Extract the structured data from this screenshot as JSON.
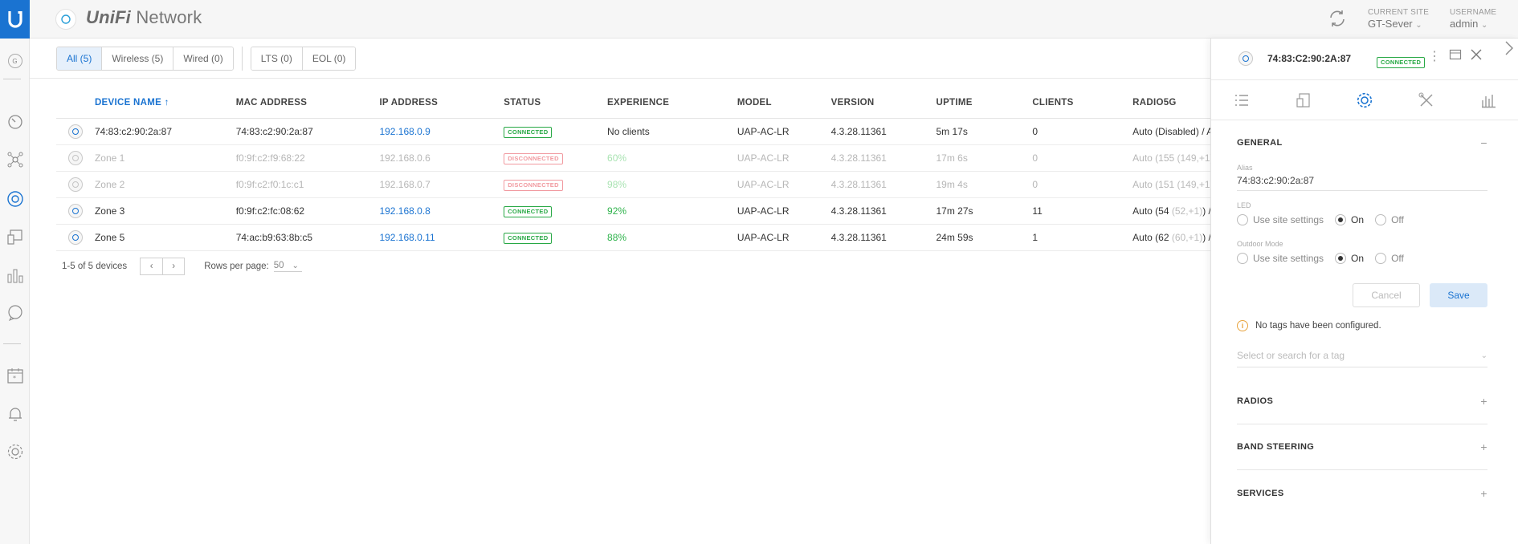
{
  "app": {
    "brand_unifi": "UniFi",
    "brand_network": "Network"
  },
  "topbar": {
    "site_label": "CURRENT SITE",
    "site_value": "GT-Sever",
    "user_label": "USERNAME",
    "user_value": "admin"
  },
  "rail": {
    "site_letter": "G"
  },
  "filters": {
    "all": "All (5)",
    "wireless": "Wireless (5)",
    "wired": "Wired (0)",
    "lts": "LTS (0)",
    "eol": "EOL (0)"
  },
  "table": {
    "headers": {
      "name": "DEVICE NAME",
      "mac": "MAC ADDRESS",
      "ip": "IP ADDRESS",
      "status": "STATUS",
      "experience": "EXPERIENCE",
      "model": "MODEL",
      "version": "VERSION",
      "uptime": "UPTIME",
      "clients": "CLIENTS",
      "radio": "RADIO5G"
    },
    "rows": [
      {
        "name": "74:83:c2:90:2a:87",
        "mac": "74:83:c2:90:2a:87",
        "ip": "192.168.0.9",
        "status": "CONNECTED",
        "experience": "No clients",
        "model": "UAP-AC-LR",
        "version": "4.3.28.11361",
        "uptime": "5m 17s",
        "clients": "0",
        "radio_main": "Auto (Disabled)",
        "radio_paren": "",
        "radio_tail": " / A"
      },
      {
        "name": "Zone 1",
        "mac": "f0:9f:c2:f9:68:22",
        "ip": "192.168.0.6",
        "status": "DISCONNECTED",
        "experience": "60%",
        "model": "UAP-AC-LR",
        "version": "4.3.28.11361",
        "uptime": "17m 6s",
        "clients": "0",
        "radio_main": "Auto (155 ",
        "radio_paren": "(149,+1)",
        "radio_tail": ")"
      },
      {
        "name": "Zone 2",
        "mac": "f0:9f:c2:f0:1c:c1",
        "ip": "192.168.0.7",
        "status": "DISCONNECTED",
        "experience": "98%",
        "model": "UAP-AC-LR",
        "version": "4.3.28.11361",
        "uptime": "19m 4s",
        "clients": "0",
        "radio_main": "Auto (151 ",
        "radio_paren": "(149,+1)",
        "radio_tail": ")"
      },
      {
        "name": "Zone 3",
        "mac": "f0:9f:c2:fc:08:62",
        "ip": "192.168.0.8",
        "status": "CONNECTED",
        "experience": "92%",
        "model": "UAP-AC-LR",
        "version": "4.3.28.11361",
        "uptime": "17m 27s",
        "clients": "11",
        "radio_main": "Auto (54 ",
        "radio_paren": "(52,+1)",
        "radio_tail": ")  /"
      },
      {
        "name": "Zone 5",
        "mac": "74:ac:b9:63:8b:c5",
        "ip": "192.168.0.11",
        "status": "CONNECTED",
        "experience": "88%",
        "model": "UAP-AC-LR",
        "version": "4.3.28.11361",
        "uptime": "24m 59s",
        "clients": "1",
        "radio_main": "Auto (62 ",
        "radio_paren": "(60,+1)",
        "radio_tail": ")  /"
      }
    ]
  },
  "pager": {
    "summary": "1-5 of 5 devices",
    "rows_label": "Rows per page:",
    "rows_value": "50"
  },
  "panel": {
    "title": "74:83:C2:90:2A:87",
    "status": "CONNECTED",
    "general_title": "GENERAL",
    "alias_label": "Alias",
    "alias_value": "74:83:c2:90:2a:87",
    "led_label": "LED",
    "outdoor_label": "Outdoor Mode",
    "opt_site": "Use site settings",
    "opt_on": "On",
    "opt_off": "Off",
    "cancel": "Cancel",
    "save": "Save",
    "no_tags": "No tags have been configured.",
    "tag_placeholder": "Select or search for a tag",
    "radios": "RADIOS",
    "band_steering": "BAND STEERING",
    "services": "SERVICES"
  }
}
